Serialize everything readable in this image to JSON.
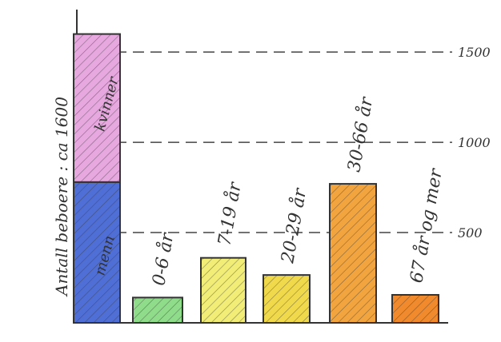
{
  "chart_data": {
    "type": "bar",
    "ylabel": "Antall beboere : ca 1600",
    "ylim": [
      0,
      1700
    ],
    "grid": true,
    "gridlines": [
      500,
      1000,
      1500
    ],
    "tick_labels": [
      "500",
      "1000",
      "1500"
    ],
    "stacked_bar": {
      "segments": [
        {
          "name": "menn",
          "value": 780,
          "color": "#4f6fd6"
        },
        {
          "name": "kvinner",
          "value": 820,
          "color": "#e7a7df"
        }
      ]
    },
    "categories": [
      "0-6 år",
      "7-19 år",
      "20-29 år",
      "30-66 år",
      "67 år og mer"
    ],
    "values": [
      140,
      360,
      265,
      770,
      155
    ],
    "colors": [
      "#8fdc8a",
      "#f1ed77",
      "#f1d94c",
      "#f2a43f",
      "#f08a2c"
    ]
  }
}
